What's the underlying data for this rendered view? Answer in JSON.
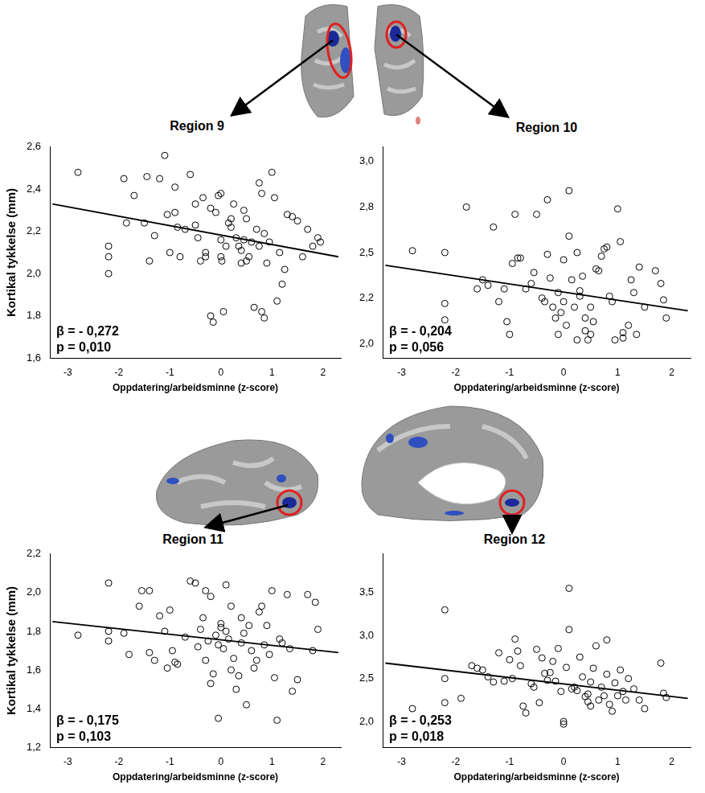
{
  "chart_data": [
    {
      "type": "scatter",
      "title": "Region 9",
      "xlabel": "Oppdatering/arbeidsminne (z-score)",
      "ylabel": "Kortikal tykkelse (mm)",
      "annotations": [
        "β = - 0,272",
        "p = 0,010"
      ],
      "x": [
        -2.8,
        -2.2,
        -2.2,
        -2.2,
        -1.9,
        -1.85,
        -1.7,
        -1.5,
        -1.45,
        -1.4,
        -1.3,
        -1.2,
        -1.1,
        -1.05,
        -1.0,
        -0.9,
        -0.9,
        -0.85,
        -0.8,
        -0.7,
        -0.6,
        -0.5,
        -0.5,
        -0.45,
        -0.4,
        -0.35,
        -0.3,
        -0.3,
        -0.2,
        -0.2,
        -0.15,
        -0.1,
        -0.05,
        0.0,
        0.0,
        0.0,
        0.02,
        0.05,
        0.1,
        0.15,
        0.2,
        0.2,
        0.25,
        0.3,
        0.35,
        0.4,
        0.4,
        0.45,
        0.45,
        0.5,
        0.5,
        0.55,
        0.6,
        0.65,
        0.7,
        0.75,
        0.75,
        0.8,
        0.8,
        0.85,
        0.85,
        0.9,
        0.95,
        1.0,
        1.05,
        1.1,
        1.15,
        1.2,
        1.25,
        1.3,
        1.4,
        1.5,
        1.6,
        1.7,
        1.8,
        1.9,
        1.95
      ],
      "values": [
        2.48,
        2.13,
        2.08,
        2.0,
        2.45,
        2.24,
        2.37,
        2.24,
        2.46,
        2.06,
        2.18,
        2.45,
        2.56,
        2.28,
        2.1,
        2.41,
        2.29,
        2.22,
        2.08,
        2.21,
        2.47,
        2.33,
        2.23,
        2.17,
        2.06,
        2.36,
        2.1,
        2.08,
        2.31,
        1.8,
        1.77,
        2.29,
        2.37,
        2.38,
        2.16,
        2.08,
        2.06,
        1.82,
        2.13,
        2.24,
        2.22,
        2.26,
        2.33,
        2.17,
        2.13,
        2.11,
        2.05,
        2.3,
        2.16,
        2.06,
        2.26,
        2.08,
        2.15,
        1.84,
        2.21,
        2.13,
        2.43,
        2.38,
        1.82,
        2.19,
        1.79,
        2.05,
        2.15,
        2.48,
        2.36,
        1.87,
        2.1,
        1.95,
        2.02,
        2.28,
        2.27,
        2.25,
        2.08,
        2.21,
        2.13,
        2.17,
        2.15
      ],
      "marker": "circle",
      "color": "#000000",
      "fit_line": {
        "x": [
          -3.3,
          2.3
        ],
        "values": [
          2.33,
          2.08
        ],
        "color": "#000000",
        "line_style": "solid"
      },
      "xlim": [
        -3.35,
        2.35
      ],
      "xticks": [
        -3,
        -2,
        -1,
        0,
        1,
        2
      ],
      "ylim": [
        1.6,
        2.6
      ],
      "yticks": [
        {
          "value": 1.6,
          "label": "1,6"
        },
        {
          "value": 1.8,
          "label": "1,8"
        },
        {
          "value": 2.0,
          "label": "2,0"
        },
        {
          "value": 2.2,
          "label": "2,2"
        },
        {
          "value": 2.4,
          "label": "2,4"
        },
        {
          "value": 2.6,
          "label": "2,6"
        }
      ],
      "grid": false
    },
    {
      "type": "scatter",
      "title": "Region 10",
      "xlabel": "Oppdatering/arbeidsminne (z-score)",
      "annotations": [
        "β = - 0,204",
        "p = 0,056"
      ],
      "x": [
        -2.8,
        -2.2,
        -2.2,
        -2.2,
        -1.8,
        -1.6,
        -1.5,
        -1.4,
        -1.3,
        -1.2,
        -1.1,
        -1.05,
        -1.0,
        -0.95,
        -0.9,
        -0.85,
        -0.8,
        -0.7,
        -0.6,
        -0.55,
        -0.5,
        -0.4,
        -0.35,
        -0.3,
        -0.3,
        -0.25,
        -0.2,
        -0.15,
        -0.1,
        -0.1,
        -0.05,
        0.0,
        0.0,
        0.05,
        0.1,
        0.1,
        0.15,
        0.2,
        0.25,
        0.25,
        0.3,
        0.3,
        0.35,
        0.4,
        0.4,
        0.45,
        0.5,
        0.5,
        0.55,
        0.6,
        0.65,
        0.7,
        0.75,
        0.8,
        0.85,
        0.9,
        0.95,
        1.0,
        1.05,
        1.1,
        1.1,
        1.2,
        1.25,
        1.3,
        1.35,
        1.4,
        1.5,
        1.7,
        1.8,
        1.85,
        1.9
      ],
      "values": [
        2.51,
        2.5,
        2.22,
        2.13,
        2.75,
        2.3,
        2.35,
        2.32,
        2.64,
        2.23,
        2.3,
        2.12,
        2.05,
        2.44,
        2.71,
        2.47,
        2.47,
        2.3,
        2.33,
        2.39,
        2.71,
        2.25,
        2.23,
        2.79,
        2.49,
        2.36,
        2.2,
        2.14,
        2.28,
        2.05,
        2.17,
        2.46,
        2.23,
        2.1,
        2.84,
        2.59,
        2.35,
        2.2,
        2.5,
        2.02,
        2.29,
        2.26,
        2.37,
        2.14,
        2.07,
        2.02,
        2.2,
        2.05,
        2.12,
        2.41,
        2.4,
        2.48,
        2.52,
        2.53,
        2.26,
        2.23,
        2.02,
        2.74,
        2.56,
        2.06,
        2.03,
        2.1,
        2.35,
        2.28,
        2.05,
        2.42,
        2.2,
        2.4,
        2.33,
        2.24,
        2.14
      ],
      "marker": "circle",
      "color": "#000000",
      "fit_line": {
        "x": [
          -3.3,
          2.3
        ],
        "values": [
          2.43,
          2.18
        ],
        "color": "#000000",
        "line_style": "solid"
      },
      "xlim": [
        -3.35,
        2.35
      ],
      "xticks": [
        -3,
        -2,
        -1,
        0,
        1,
        2
      ],
      "ylim": [
        1.92,
        3.08
      ],
      "yticks": [
        {
          "value": 2.0,
          "label": "2,0"
        },
        {
          "value": 2.25,
          "label": "2,2"
        },
        {
          "value": 2.5,
          "label": "2,5"
        },
        {
          "value": 2.75,
          "label": "2,8"
        },
        {
          "value": 3.0,
          "label": "3,0"
        }
      ],
      "grid": false
    },
    {
      "type": "scatter",
      "title": "Region 11",
      "xlabel": "Oppdatering/arbeidsminne (z-score)",
      "ylabel": "Kortikal tykkelse (mm)",
      "annotations": [
        "β = - 0,175",
        "p = 0,103"
      ],
      "x": [
        -2.8,
        -2.2,
        -2.2,
        -2.2,
        -1.9,
        -1.8,
        -1.6,
        -1.55,
        -1.4,
        -1.4,
        -1.3,
        -1.2,
        -1.1,
        -1.05,
        -1.0,
        -0.95,
        -0.9,
        -0.85,
        -0.7,
        -0.6,
        -0.5,
        -0.45,
        -0.4,
        -0.35,
        -0.3,
        -0.3,
        -0.25,
        -0.2,
        -0.15,
        -0.1,
        -0.05,
        0.0,
        0.0,
        0.05,
        0.1,
        0.1,
        0.15,
        0.2,
        0.2,
        0.25,
        0.3,
        0.35,
        0.4,
        0.4,
        0.45,
        0.5,
        0.55,
        0.6,
        0.65,
        0.7,
        0.75,
        0.8,
        0.85,
        0.9,
        0.95,
        1.0,
        1.05,
        1.1,
        1.15,
        1.2,
        1.3,
        1.35,
        1.4,
        1.5,
        1.7,
        1.8,
        1.85,
        1.9,
        -0.05,
        -0.2
      ],
      "values": [
        1.78,
        2.05,
        1.8,
        1.75,
        1.79,
        1.68,
        1.93,
        2.01,
        2.01,
        1.69,
        1.65,
        1.88,
        1.8,
        1.61,
        1.91,
        1.7,
        1.64,
        1.63,
        1.77,
        2.06,
        2.05,
        1.72,
        1.81,
        1.87,
        2.01,
        1.65,
        1.75,
        1.98,
        1.58,
        1.78,
        1.73,
        1.84,
        1.82,
        1.71,
        1.8,
        2.04,
        1.76,
        1.93,
        1.6,
        1.66,
        1.5,
        1.57,
        1.87,
        1.74,
        1.79,
        1.42,
        1.83,
        1.7,
        1.61,
        1.65,
        1.9,
        1.93,
        1.73,
        1.83,
        1.68,
        2.01,
        1.56,
        1.34,
        1.76,
        1.74,
        1.99,
        1.71,
        1.49,
        1.55,
        1.99,
        1.7,
        1.95,
        1.81,
        1.35,
        1.53
      ],
      "marker": "circle",
      "color": "#000000",
      "fit_line": {
        "x": [
          -3.3,
          2.3
        ],
        "values": [
          1.85,
          1.69
        ],
        "color": "#000000",
        "line_style": "solid"
      },
      "xlim": [
        -3.35,
        2.35
      ],
      "xticks": [
        -3,
        -2,
        -1,
        0,
        1,
        2
      ],
      "ylim": [
        1.2,
        2.2
      ],
      "yticks": [
        {
          "value": 1.2,
          "label": "1,2"
        },
        {
          "value": 1.4,
          "label": "1,4"
        },
        {
          "value": 1.6,
          "label": "1,6"
        },
        {
          "value": 1.8,
          "label": "1,8"
        },
        {
          "value": 2.0,
          "label": "2,0"
        },
        {
          "value": 2.2,
          "label": "2,2"
        }
      ],
      "grid": false
    },
    {
      "type": "scatter",
      "title": "Region 12",
      "xlabel": "Oppdatering/arbeidsminne (z-score)",
      "annotations": [
        "β = - 0,253",
        "p = 0,018"
      ],
      "x": [
        -2.8,
        -2.2,
        -2.2,
        -2.2,
        -1.9,
        -1.7,
        -1.6,
        -1.5,
        -1.4,
        -1.3,
        -1.2,
        -1.1,
        -1.0,
        -0.95,
        -0.9,
        -0.85,
        -0.8,
        -0.75,
        -0.7,
        -0.6,
        -0.55,
        -0.5,
        -0.4,
        -0.35,
        -0.3,
        -0.25,
        -0.2,
        -0.15,
        -0.1,
        -0.05,
        0.0,
        0.0,
        0.05,
        0.1,
        0.1,
        0.15,
        0.2,
        0.25,
        0.3,
        0.35,
        0.4,
        0.45,
        0.5,
        0.5,
        0.55,
        0.6,
        0.65,
        0.7,
        0.75,
        0.8,
        0.8,
        0.85,
        0.9,
        0.95,
        1.0,
        1.05,
        1.1,
        1.15,
        1.2,
        1.3,
        1.4,
        1.5,
        1.8,
        1.85,
        1.9,
        0.45,
        -0.45
      ],
      "values": [
        2.15,
        3.3,
        2.5,
        2.22,
        2.27,
        2.65,
        2.62,
        2.6,
        2.52,
        2.46,
        2.8,
        2.47,
        2.72,
        2.5,
        2.96,
        2.82,
        2.65,
        2.18,
        2.1,
        2.44,
        2.4,
        2.84,
        2.74,
        2.56,
        2.48,
        2.57,
        2.7,
        2.47,
        2.85,
        2.35,
        1.97,
        2.0,
        2.63,
        3.55,
        3.07,
        2.38,
        2.4,
        2.36,
        2.75,
        2.52,
        2.29,
        2.23,
        2.46,
        2.18,
        2.62,
        2.88,
        2.25,
        2.4,
        2.3,
        2.95,
        2.55,
        2.2,
        2.12,
        2.45,
        2.3,
        2.6,
        2.35,
        2.25,
        2.5,
        2.38,
        2.25,
        2.15,
        2.68,
        2.33,
        2.28,
        2.32,
        2.22
      ],
      "marker": "circle",
      "color": "#000000",
      "fit_line": {
        "x": [
          -3.3,
          2.3
        ],
        "values": [
          2.68,
          2.27
        ],
        "color": "#000000",
        "line_style": "solid"
      },
      "xlim": [
        -3.35,
        2.35
      ],
      "xticks": [
        -3,
        -2,
        -1,
        0,
        1,
        2
      ],
      "ylim": [
        1.7,
        3.95
      ],
      "yticks": [
        {
          "value": 2.0,
          "label": "2,0"
        },
        {
          "value": 2.5,
          "label": "2,5"
        },
        {
          "value": 3.0,
          "label": "3,0"
        },
        {
          "value": 3.5,
          "label": "3,5"
        }
      ],
      "grid": false
    }
  ]
}
